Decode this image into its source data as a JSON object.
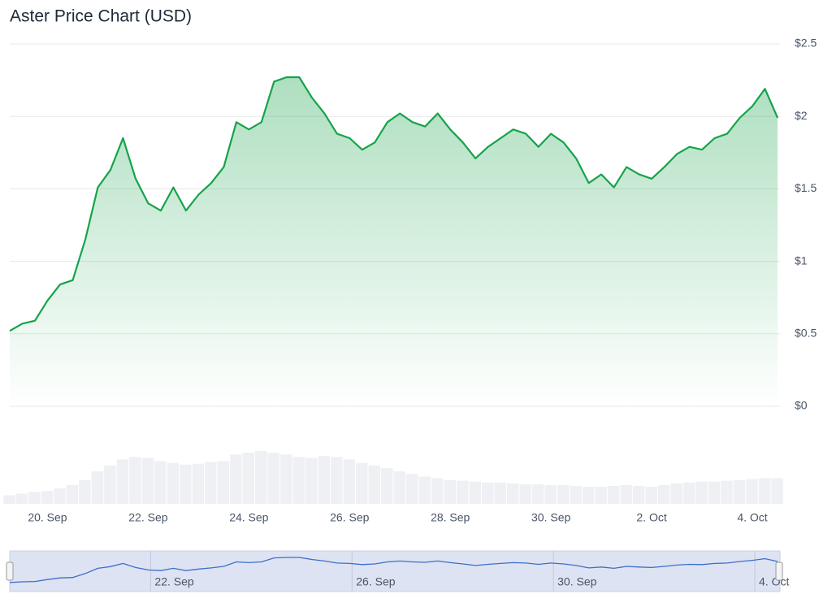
{
  "chart_data": {
    "type": "line",
    "title": "Aster Price Chart (USD)",
    "categories": [
      null,
      null,
      null,
      "20. Sep",
      null,
      null,
      null,
      null,
      null,
      null,
      null,
      "22. Sep",
      null,
      null,
      null,
      null,
      null,
      null,
      null,
      "24. Sep",
      null,
      null,
      null,
      null,
      null,
      null,
      null,
      "26. Sep",
      null,
      null,
      null,
      null,
      null,
      null,
      null,
      "28. Sep",
      null,
      null,
      null,
      null,
      null,
      null,
      null,
      "30. Sep",
      null,
      null,
      null,
      null,
      null,
      null,
      null,
      "2. Oct",
      null,
      null,
      null,
      null,
      null,
      null,
      null,
      "4. Oct",
      null,
      null
    ],
    "series": [
      {
        "name": "Price",
        "color": "#16a34a",
        "values": [
          0.52,
          0.57,
          0.59,
          0.73,
          0.84,
          0.87,
          1.15,
          1.51,
          1.63,
          1.85,
          1.57,
          1.4,
          1.35,
          1.51,
          1.35,
          1.46,
          1.54,
          1.65,
          1.96,
          1.91,
          1.96,
          2.24,
          2.27,
          2.27,
          2.13,
          2.02,
          1.88,
          1.85,
          1.77,
          1.82,
          1.96,
          2.02,
          1.96,
          1.93,
          2.02,
          1.91,
          1.82,
          1.71,
          1.79,
          1.85,
          1.91,
          1.88,
          1.79,
          1.88,
          1.82,
          1.71,
          1.54,
          1.6,
          1.51,
          1.65,
          1.6,
          1.57,
          1.65,
          1.74,
          1.79,
          1.77,
          1.85,
          1.88,
          1.99,
          2.07,
          2.19,
          1.99
        ]
      }
    ],
    "volume": [
      10,
      12,
      14,
      15,
      18,
      22,
      28,
      38,
      45,
      52,
      55,
      54,
      50,
      48,
      46,
      47,
      49,
      50,
      58,
      60,
      62,
      60,
      58,
      55,
      54,
      56,
      55,
      52,
      48,
      45,
      42,
      38,
      35,
      32,
      30,
      28,
      27,
      26,
      25,
      25,
      24,
      23,
      23,
      22,
      22,
      21,
      20,
      20,
      21,
      22,
      21,
      20,
      22,
      24,
      25,
      26,
      26,
      27,
      28,
      29,
      30,
      30
    ],
    "ylim": [
      0,
      2.5
    ],
    "yticks": [
      {
        "value": 0,
        "label": "$0"
      },
      {
        "value": 0.5,
        "label": "$0.5"
      },
      {
        "value": 1,
        "label": "$1"
      },
      {
        "value": 1.5,
        "label": "$1.5"
      },
      {
        "value": 2,
        "label": "$2"
      },
      {
        "value": 2.5,
        "label": "$2.5"
      }
    ],
    "grid": true
  }
}
